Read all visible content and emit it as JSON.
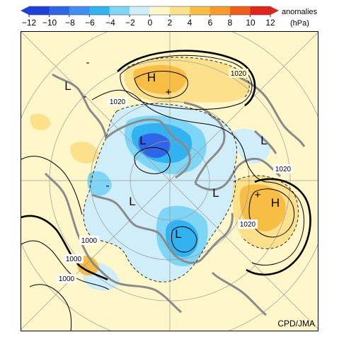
{
  "colorbar": {
    "ticks": [
      "−12",
      "−10",
      "−8",
      "−6",
      "−4",
      "−2",
      "0",
      "2",
      "4",
      "6",
      "8",
      "10",
      "12"
    ],
    "title_line1": "anomalies",
    "title_line2": "(hPa)",
    "colors": [
      "#1e3fd8",
      "#2f66e8",
      "#3f8ef0",
      "#33b2f2",
      "#7fd5f6",
      "#cfeefa",
      "#fff6c9",
      "#fde08c",
      "#f8bd45",
      "#f59a2d",
      "#ee5d1c",
      "#e0261a"
    ]
  },
  "map": {
    "pressure_labels": [
      "H",
      "H",
      "L",
      "L",
      "L",
      "L",
      "L",
      "L"
    ],
    "anomaly_signs": [
      "+",
      "+",
      "-",
      "-",
      "-"
    ],
    "contour_labels": [
      "1020",
      "1020",
      "1020",
      "1020",
      "1000",
      "1000",
      "1000"
    ],
    "colors": {
      "positive_light": "#fde08c",
      "positive_mid": "#f8bd45",
      "negative_light": "#cfeefa",
      "negative_mid": "#7fd5f6",
      "negative_strong": "#33b2f2",
      "negative_deep": "#2f66e8",
      "coastline": "#8a8a8a"
    }
  },
  "credit": "CPD/JMA"
}
